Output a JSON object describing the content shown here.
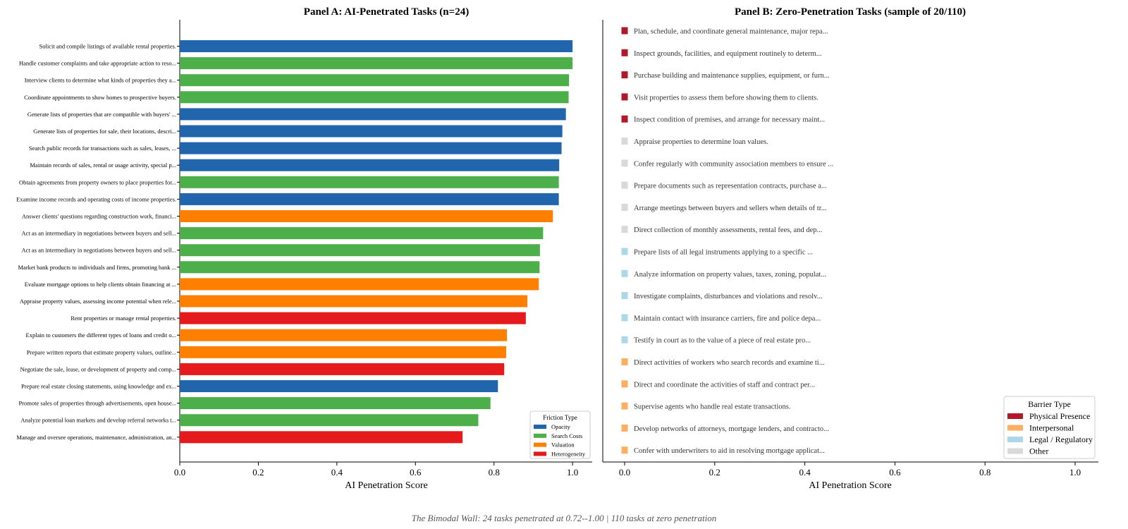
{
  "caption": "The Bimodal Wall: 24 tasks penetrated at 0.72--1.00  |  110 tasks at zero penetration",
  "chart_data": [
    {
      "type": "bar",
      "orientation": "horizontal",
      "title": "Panel A: AI-Penetrated Tasks (n=24)",
      "xlabel": "AI Penetration Score",
      "xlim": [
        0,
        1.05
      ],
      "xticks": [
        "0.0",
        "0.2",
        "0.4",
        "0.6",
        "0.8",
        "1.0"
      ],
      "categories": [
        "Solicit and compile listings of available rental properties.",
        "Handle customer complaints and take appropriate action to reso...",
        "Interview clients to determine what kinds of properties they a...",
        "Coordinate appointments to show homes to prospective buyers.",
        "Generate lists of properties that are compatible with buyers' ...",
        "Generate lists of properties for sale, their locations, descri...",
        "Search public records for transactions such as sales, leases, ...",
        "Maintain records of sales, rental or usage activity, special p...",
        "Obtain agreements from property owners to place properties for...",
        "Examine income records and operating costs of income properties.",
        "Answer clients' questions regarding construction work, financi...",
        "Act as an intermediary in negotiations between buyers and sell...",
        "Act as an intermediary in negotiations between buyers and sell...",
        "Market bank products to individuals and firms, promoting bank ...",
        "Evaluate mortgage options to help clients obtain financing at ...",
        "Appraise property values, assessing income potential when rele...",
        "Rent properties or manage rental properties.",
        "Explain to customers the different types of loans and credit o...",
        "Prepare written reports that estimate property values, outline...",
        "Negotiate the sale, lease, or development of property and comp...",
        "Prepare real estate closing statements, using knowledge and ex...",
        "Promote sales of properties through advertisements, open house...",
        "Analyze potential loan markets and develop referral networks t...",
        "Manage and oversee operations, maintenance, administration, an..."
      ],
      "values": [
        1.0,
        1.0,
        0.991,
        0.99,
        0.983,
        0.974,
        0.972,
        0.966,
        0.965,
        0.965,
        0.95,
        0.925,
        0.917,
        0.916,
        0.914,
        0.885,
        0.881,
        0.833,
        0.831,
        0.826,
        0.81,
        0.791,
        0.76,
        0.72
      ],
      "groups": [
        "Opacity",
        "Search Costs",
        "Search Costs",
        "Search Costs",
        "Opacity",
        "Opacity",
        "Opacity",
        "Opacity",
        "Search Costs",
        "Opacity",
        "Valuation",
        "Search Costs",
        "Search Costs",
        "Search Costs",
        "Valuation",
        "Valuation",
        "Heterogeneity",
        "Valuation",
        "Valuation",
        "Heterogeneity",
        "Opacity",
        "Search Costs",
        "Search Costs",
        "Heterogeneity"
      ],
      "legend": {
        "title": "Friction Type",
        "position": "bottom-right",
        "entries": [
          {
            "name": "Opacity",
            "color": "#2166ac"
          },
          {
            "name": "Search Costs",
            "color": "#4daf4a"
          },
          {
            "name": "Valuation",
            "color": "#ff7f00"
          },
          {
            "name": "Heterogeneity",
            "color": "#e41a1c"
          }
        ]
      }
    },
    {
      "type": "scatter",
      "title": "Panel B: Zero-Penetration Tasks (sample of 20/110)",
      "xlabel": "AI Penetration Score",
      "xlim": [
        0,
        1.05
      ],
      "xticks": [
        "0.0",
        "0.2",
        "0.4",
        "0.6",
        "0.8",
        "1.0"
      ],
      "categories": [
        "Plan, schedule, and coordinate general maintenance, major repa...",
        "Inspect grounds, facilities, and equipment routinely to determ...",
        "Purchase building and maintenance supplies, equipment, or furn...",
        "Visit properties to assess them before showing them to clients.",
        "Inspect condition of premises, and arrange for necessary maint...",
        "Appraise properties to determine loan values.",
        "Confer regularly with community association members to ensure ...",
        "Prepare documents such as representation contracts, purchase a...",
        "Arrange meetings between buyers and sellers when details of tr...",
        "Direct collection of monthly assessments, rental fees, and dep...",
        "Prepare lists of all legal instruments applying to a specific ...",
        "Analyze information on property values, taxes, zoning, populat...",
        "Investigate complaints, disturbances and violations and resolv...",
        "Maintain contact with insurance carriers, fire and police depa...",
        "Testify in court as to the value of a piece of real estate pro...",
        "Direct activities of workers who search records and examine ti...",
        "Direct and coordinate the activities of staff and contract per...",
        "Supervise agents who handle real estate transactions.",
        "Develop networks of attorneys, mortgage lenders, and contracto...",
        "Confer with underwriters to aid in resolving mortgage applicat..."
      ],
      "values": [
        0,
        0,
        0,
        0,
        0,
        0,
        0,
        0,
        0,
        0,
        0,
        0,
        0,
        0,
        0,
        0,
        0,
        0,
        0,
        0
      ],
      "groups": [
        "Physical Presence",
        "Physical Presence",
        "Physical Presence",
        "Physical Presence",
        "Physical Presence",
        "Other",
        "Other",
        "Other",
        "Other",
        "Other",
        "Legal / Regulatory",
        "Legal / Regulatory",
        "Legal / Regulatory",
        "Legal / Regulatory",
        "Legal / Regulatory",
        "Interpersonal",
        "Interpersonal",
        "Interpersonal",
        "Interpersonal",
        "Interpersonal"
      ],
      "legend": {
        "title": "Barrier Type",
        "position": "bottom-right",
        "entries": [
          {
            "name": "Physical Presence",
            "color": "#b2182b"
          },
          {
            "name": "Interpersonal",
            "color": "#fdae61"
          },
          {
            "name": "Legal / Regulatory",
            "color": "#abd9e9"
          },
          {
            "name": "Other",
            "color": "#d9d9d9"
          }
        ]
      }
    }
  ]
}
